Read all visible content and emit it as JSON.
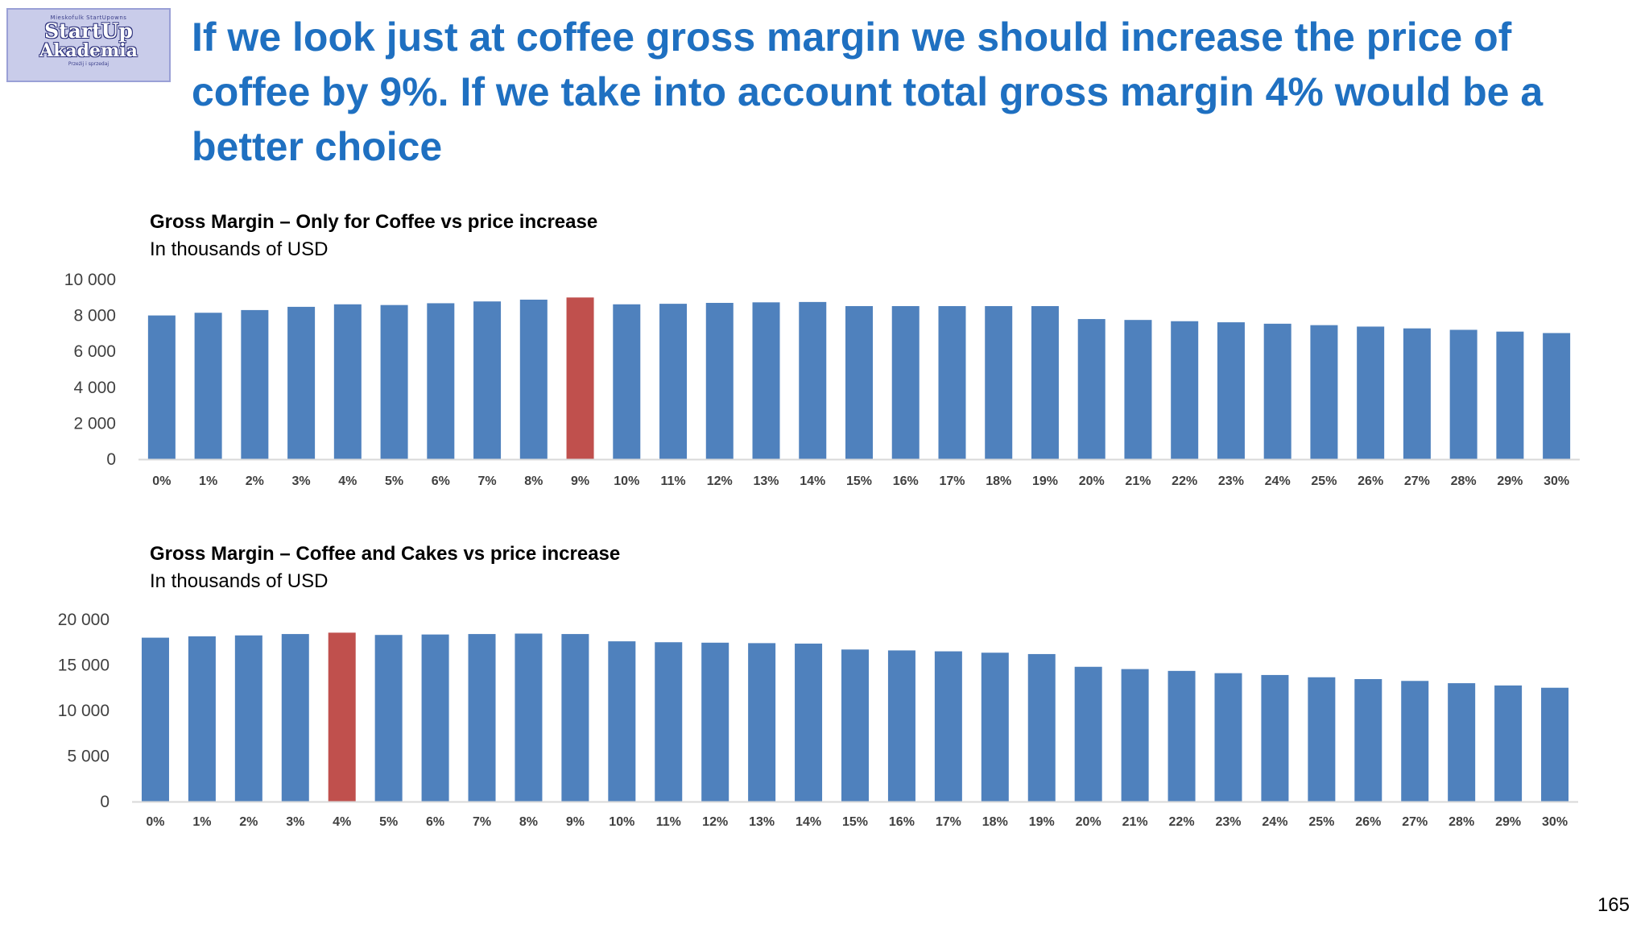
{
  "logo": {
    "top_text": "Mieskofulk StartUpowns",
    "main_text": "StartUp",
    "sub_text": "Akademia",
    "bottom_text": "Przeżij i sprzedaj"
  },
  "headline": "If we look just at coffee gross margin we should increase the price of coffee by 9%. If we take into account total gross margin 4% would be a better choice",
  "page_number": "165",
  "colors": {
    "bar": "#4f81bd",
    "highlight": "#c0504d",
    "headline": "#1f70c1"
  },
  "chart_data": [
    {
      "type": "bar",
      "title": "Gross Margin – Only for Coffee vs price increase",
      "subtitle": "In thousands of USD",
      "categories": [
        "0%",
        "1%",
        "2%",
        "3%",
        "4%",
        "5%",
        "6%",
        "7%",
        "8%",
        "9%",
        "10%",
        "11%",
        "12%",
        "13%",
        "14%",
        "15%",
        "16%",
        "17%",
        "18%",
        "19%",
        "20%",
        "21%",
        "22%",
        "23%",
        "24%",
        "25%",
        "26%",
        "27%",
        "28%",
        "29%",
        "30%"
      ],
      "values": [
        8000,
        8150,
        8300,
        8480,
        8620,
        8580,
        8680,
        8780,
        8880,
        9000,
        8620,
        8650,
        8700,
        8730,
        8750,
        8520,
        8520,
        8520,
        8520,
        8520,
        7800,
        7750,
        7680,
        7620,
        7540,
        7460,
        7380,
        7280,
        7200,
        7100,
        7020
      ],
      "highlight_index": 9,
      "yticks": [
        "0",
        "2 000",
        "4 000",
        "6 000",
        "8 000",
        "10 000"
      ],
      "ylim": [
        0,
        10000
      ],
      "grid": false
    },
    {
      "type": "bar",
      "title": "Gross Margin – Coffee and Cakes vs price increase",
      "subtitle": "In thousands of USD",
      "categories": [
        "0%",
        "1%",
        "2%",
        "3%",
        "4%",
        "5%",
        "6%",
        "7%",
        "8%",
        "9%",
        "10%",
        "11%",
        "12%",
        "13%",
        "14%",
        "15%",
        "16%",
        "17%",
        "18%",
        "19%",
        "20%",
        "21%",
        "22%",
        "23%",
        "24%",
        "25%",
        "26%",
        "27%",
        "28%",
        "29%",
        "30%"
      ],
      "values": [
        18000,
        18150,
        18250,
        18400,
        18550,
        18300,
        18350,
        18400,
        18450,
        18400,
        17600,
        17500,
        17450,
        17400,
        17350,
        16700,
        16600,
        16500,
        16350,
        16200,
        14800,
        14550,
        14350,
        14100,
        13900,
        13650,
        13450,
        13250,
        13000,
        12750,
        12500
      ],
      "highlight_index": 4,
      "yticks": [
        "0",
        "5 000",
        "10 000",
        "15 000",
        "20 000"
      ],
      "ylim": [
        0,
        20000
      ],
      "grid": false
    }
  ]
}
